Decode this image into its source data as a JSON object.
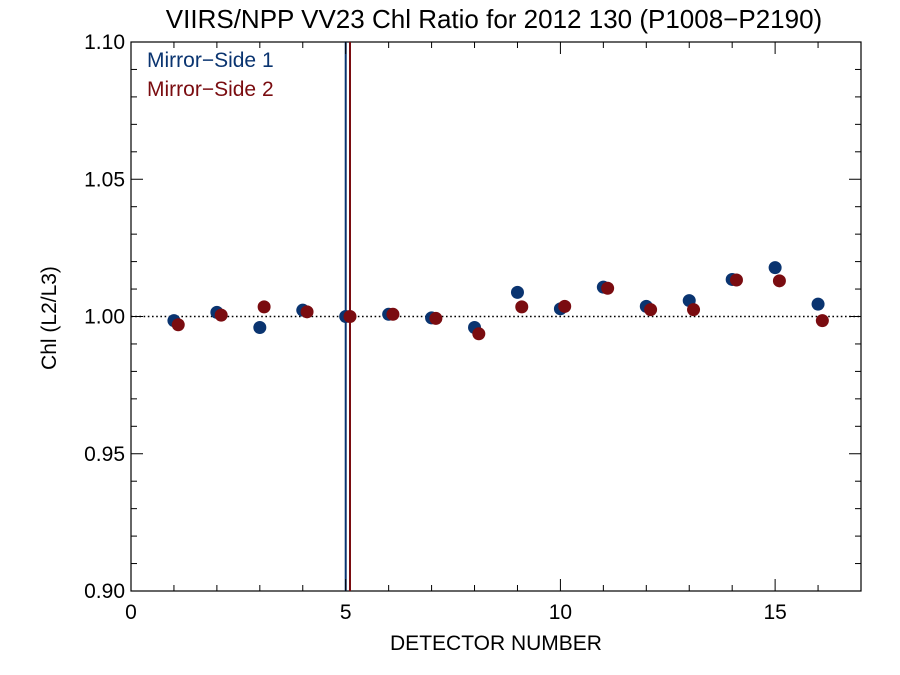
{
  "chart_data": {
    "type": "scatter",
    "title": "VIIRS/NPP VV23 Chl Ratio for 2012 130 (P1008−P2190)",
    "xlabel": "DETECTOR NUMBER",
    "ylabel": "Chl (L2/L3)",
    "xlim": [
      0,
      17
    ],
    "ylim": [
      0.9,
      1.1
    ],
    "x_ticks": [
      0,
      5,
      10,
      15
    ],
    "x_tick_labels": [
      "0",
      "5",
      "10",
      "15"
    ],
    "y_ticks": [
      0.9,
      0.95,
      1.0,
      1.05,
      1.1
    ],
    "y_tick_labels": [
      "0.90",
      "0.95",
      "1.00",
      "1.05",
      "1.10"
    ],
    "x_minor_step": 1,
    "y_minor_step": 0.01,
    "grid": false,
    "legend_position": "top-left",
    "reference_line": {
      "y": 1.0,
      "style": "dotted"
    },
    "vertical_lines": [
      {
        "x": 5.0,
        "series": 0
      },
      {
        "x": 5.1,
        "series": 1
      }
    ],
    "series": [
      {
        "name": "Mirror−Side 1",
        "color": "#0a3470",
        "x": [
          1,
          2,
          3,
          4,
          5,
          6,
          7,
          8,
          9,
          10,
          11,
          12,
          13,
          14,
          15,
          16
        ],
        "y": [
          0.9985,
          1.0015,
          0.996,
          1.0023,
          1.0,
          1.0008,
          0.9995,
          0.996,
          1.0088,
          1.0028,
          1.0107,
          1.0037,
          1.0058,
          1.0135,
          1.0178,
          1.0045
        ]
      },
      {
        "name": "Mirror−Side 2",
        "color": "#7a0c10",
        "x": [
          1.1,
          2.1,
          3.1,
          4.1,
          5.1,
          6.1,
          7.1,
          8.1,
          9.1,
          10.1,
          11.1,
          12.1,
          13.1,
          14.1,
          15.1,
          16.1
        ],
        "y": [
          0.997,
          1.0005,
          1.0035,
          1.0017,
          1.0,
          1.0008,
          0.9993,
          0.9937,
          1.0035,
          1.0037,
          1.0103,
          1.0025,
          1.0025,
          1.0133,
          1.013,
          0.9985
        ]
      }
    ]
  }
}
